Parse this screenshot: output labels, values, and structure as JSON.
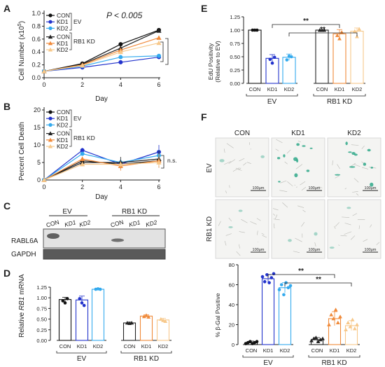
{
  "panel_letters": {
    "A": "A",
    "B": "B",
    "C": "C",
    "D": "D",
    "E": "E",
    "F": "F"
  },
  "colors": {
    "con_ev": "#111111",
    "kd1_ev": "#2233cc",
    "kd2_ev": "#33aaee",
    "con_rb": "#222222",
    "kd1_rb": "#f08a3a",
    "kd2_rb": "#f7c88a",
    "stain": "#2fa88a",
    "grid_bg": "#f4f4f2"
  },
  "legend": {
    "con": "CON",
    "kd1": "KD1",
    "kd2": "KD2",
    "ev": "EV",
    "rb": "RB1 KD"
  },
  "panelA": {
    "pvalue": "P < 0.005",
    "ylabel_main": "Cell Number (x10",
    "ylabel_sup": "5",
    "ylabel_end": ")",
    "xlabel": "Day",
    "yticks": [
      "0.0",
      "0.2",
      "0.4",
      "0.6",
      "0.8",
      "1.0"
    ],
    "xticks": [
      "0",
      "2",
      "4",
      "6"
    ]
  },
  "panelB": {
    "ylabel": "Percent Cell Death",
    "xlabel": "Day",
    "ns": "n.s.",
    "yticks": [
      "0",
      "5",
      "10",
      "15",
      "20"
    ],
    "xticks": [
      "0",
      "2",
      "4",
      "6"
    ]
  },
  "panelC": {
    "ev": "EV",
    "rb": "RB1 KD",
    "lanes": [
      "CON",
      "KD1",
      "KD2",
      "CON",
      "KD1",
      "KD2"
    ],
    "rows": [
      "RABL6A",
      "GAPDH"
    ]
  },
  "panelD": {
    "ylabel_pre": "Relative ",
    "ylabel_gene": "RB1",
    "ylabel_post": " mRNA",
    "yticks": [
      "0.00",
      "0.25",
      "0.50",
      "0.75",
      "1.00",
      "1.25"
    ],
    "xticks": [
      "CON",
      "KD1",
      "KD2",
      "CON",
      "KD1",
      "KD2"
    ],
    "groups": [
      "EV",
      "RB1 KD"
    ]
  },
  "panelE": {
    "ylabel1": "EdU Positivity",
    "ylabel2": "(Relative to EV)",
    "yticks": [
      "0.00",
      "0.25",
      "0.50",
      "0.75",
      "1.00",
      "1.25"
    ],
    "xticks": [
      "CON",
      "KD1",
      "KD2",
      "CON",
      "KD1",
      "KD2"
    ],
    "groups": [
      "EV",
      "RB1 KD"
    ],
    "sig": [
      "**",
      "**"
    ]
  },
  "panelF": {
    "cols": [
      "CON",
      "KD1",
      "KD2"
    ],
    "rows": [
      "EV",
      "RB1 KD"
    ],
    "scalebar": "100μm",
    "ylabel": "% β-Gal Positive",
    "yticks": [
      "0",
      "20",
      "40",
      "60",
      "80"
    ],
    "xticks": [
      "CON",
      "KD1",
      "KD2",
      "CON",
      "KD1",
      "KD2"
    ],
    "groups": [
      "EV",
      "RB1 KD"
    ],
    "sig": [
      "**",
      "**"
    ]
  },
  "chart_data": [
    {
      "type": "line",
      "panel": "A",
      "x": [
        0,
        2,
        4,
        6
      ],
      "ylim": [
        0,
        1.0
      ],
      "series": [
        {
          "group": "EV",
          "name": "CON",
          "values": [
            0.1,
            0.22,
            0.52,
            0.74
          ]
        },
        {
          "group": "EV",
          "name": "KD1",
          "values": [
            0.1,
            0.16,
            0.24,
            0.32
          ]
        },
        {
          "group": "EV",
          "name": "KD2",
          "values": [
            0.1,
            0.18,
            0.32,
            0.34
          ]
        },
        {
          "group": "RB1 KD",
          "name": "CON",
          "values": [
            0.1,
            0.21,
            0.46,
            0.73
          ]
        },
        {
          "group": "RB1 KD",
          "name": "KD1",
          "values": [
            0.1,
            0.2,
            0.43,
            0.62
          ]
        },
        {
          "group": "RB1 KD",
          "name": "KD2",
          "values": [
            0.1,
            0.19,
            0.4,
            0.54
          ]
        }
      ]
    },
    {
      "type": "line",
      "panel": "B",
      "x": [
        0,
        2,
        4,
        6
      ],
      "ylim": [
        0,
        20
      ],
      "series": [
        {
          "group": "EV",
          "name": "CON",
          "values": [
            0,
            5.5,
            4.5,
            5.5
          ]
        },
        {
          "group": "EV",
          "name": "KD1",
          "values": [
            0,
            8.5,
            4.5,
            8.0
          ]
        },
        {
          "group": "EV",
          "name": "KD2",
          "values": [
            0,
            7.5,
            5.0,
            7.0
          ]
        },
        {
          "group": "RB1 KD",
          "name": "CON",
          "values": [
            0,
            5.0,
            5.0,
            6.0
          ]
        },
        {
          "group": "RB1 KD",
          "name": "KD1",
          "values": [
            0,
            6.0,
            4.0,
            5.5
          ]
        },
        {
          "group": "RB1 KD",
          "name": "KD2",
          "values": [
            0,
            4.5,
            4.5,
            5.0
          ]
        }
      ]
    },
    {
      "type": "bar",
      "panel": "D",
      "categories": [
        "CON",
        "KD1",
        "KD2",
        "CON",
        "KD1",
        "KD2"
      ],
      "groups": [
        "EV",
        "EV",
        "EV",
        "RB1 KD",
        "RB1 KD",
        "RB1 KD"
      ],
      "values": [
        0.96,
        0.95,
        1.2,
        0.41,
        0.57,
        0.48
      ],
      "ylim": [
        0,
        1.25
      ]
    },
    {
      "type": "bar",
      "panel": "E",
      "categories": [
        "CON",
        "KD1",
        "KD2",
        "CON",
        "KD1",
        "KD2"
      ],
      "groups": [
        "EV",
        "EV",
        "EV",
        "RB1 KD",
        "RB1 KD",
        "RB1 KD"
      ],
      "values": [
        1.0,
        0.47,
        0.49,
        1.0,
        0.93,
        0.98
      ],
      "ylim": [
        0,
        1.25
      ]
    },
    {
      "type": "bar",
      "panel": "F",
      "categories": [
        "CON",
        "KD1",
        "KD2",
        "CON",
        "KD1",
        "KD2"
      ],
      "groups": [
        "EV",
        "EV",
        "EV",
        "RB1 KD",
        "RB1 KD",
        "RB1 KD"
      ],
      "values": [
        2,
        66,
        57,
        5,
        26,
        19
      ],
      "ylim": [
        0,
        80
      ]
    }
  ]
}
